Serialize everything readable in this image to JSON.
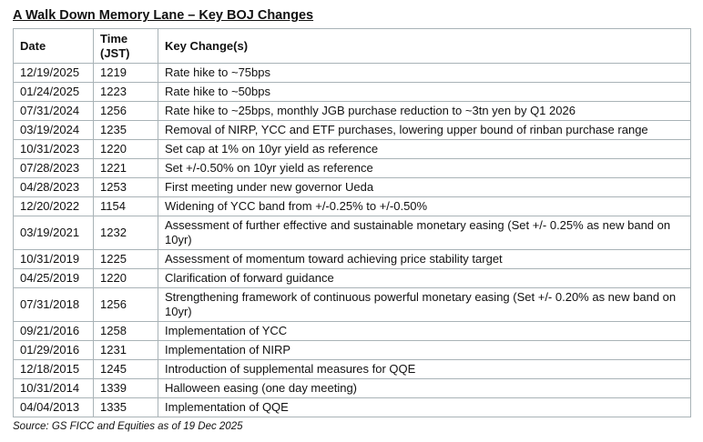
{
  "title": "A Walk Down Memory Lane – Key BOJ Changes",
  "table": {
    "columns": [
      {
        "key": "date",
        "label": "Date"
      },
      {
        "key": "time",
        "label": "Time (JST)"
      },
      {
        "key": "change",
        "label": "Key Change(s)"
      }
    ],
    "rows": [
      {
        "date": "12/19/2025",
        "time": "1219",
        "change": "Rate hike to ~75bps"
      },
      {
        "date": "01/24/2025",
        "time": "1223",
        "change": "Rate hike to ~50bps"
      },
      {
        "date": "07/31/2024",
        "time": "1256",
        "change": "Rate hike to ~25bps, monthly JGB purchase reduction to ~3tn yen by Q1 2026"
      },
      {
        "date": "03/19/2024",
        "time": "1235",
        "change": "Removal of NIRP, YCC and ETF purchases, lowering upper bound of rinban purchase range"
      },
      {
        "date": "10/31/2023",
        "time": "1220",
        "change": "Set cap at 1% on 10yr yield as reference"
      },
      {
        "date": "07/28/2023",
        "time": "1221",
        "change": "Set +/-0.50% on 10yr yield as reference"
      },
      {
        "date": "04/28/2023",
        "time": "1253",
        "change": "First meeting under new governor Ueda"
      },
      {
        "date": "12/20/2022",
        "time": "1154",
        "change": "Widening of YCC band from +/-0.25% to +/-0.50%"
      },
      {
        "date": "03/19/2021",
        "time": "1232",
        "change": "Assessment of further effective and sustainable monetary easing (Set +/- 0.25% as new band on 10yr)"
      },
      {
        "date": "10/31/2019",
        "time": "1225",
        "change": "Assessment of momentum toward achieving price stability target"
      },
      {
        "date": "04/25/2019",
        "time": "1220",
        "change": "Clarification of forward guidance"
      },
      {
        "date": "07/31/2018",
        "time": "1256",
        "change": "Strengthening framework of continuous powerful monetary easing (Set +/- 0.20% as new band on 10yr)"
      },
      {
        "date": "09/21/2016",
        "time": "1258",
        "change": "Implementation of YCC"
      },
      {
        "date": "01/29/2016",
        "time": "1231",
        "change": "Implementation of NIRP"
      },
      {
        "date": "12/18/2015",
        "time": "1245",
        "change": "Introduction of supplemental measures for QQE"
      },
      {
        "date": "10/31/2014",
        "time": "1339",
        "change": "Halloween easing (one day meeting)"
      },
      {
        "date": "04/04/2013",
        "time": "1335",
        "change": "Implementation of QQE"
      }
    ]
  },
  "footer": {
    "source": "Source: GS FICC and Equities as of 19 Dec 2025"
  }
}
